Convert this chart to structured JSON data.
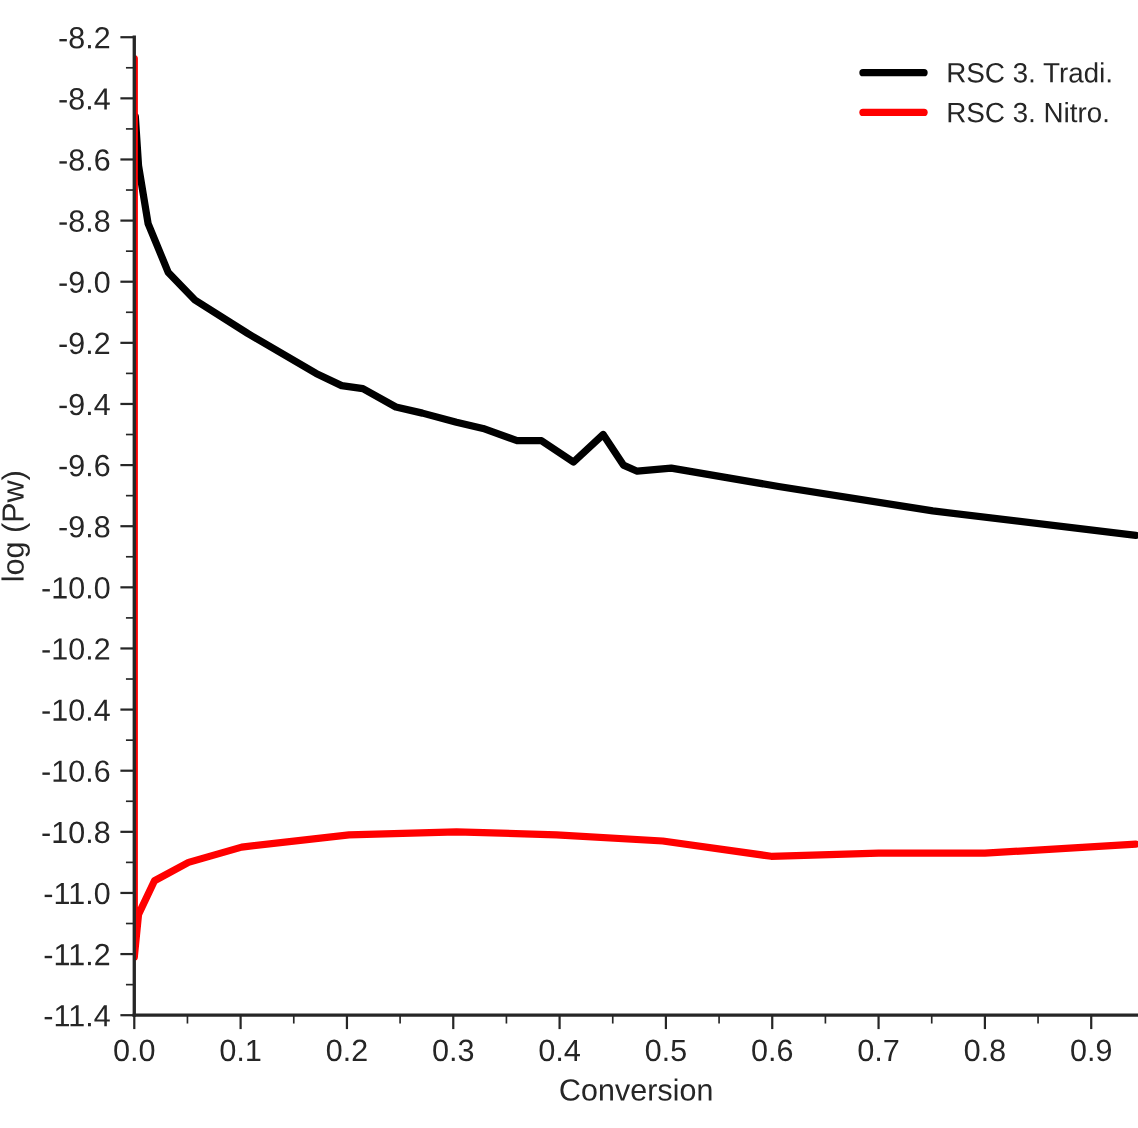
{
  "chart_data": {
    "type": "line",
    "xlabel": "Conversion",
    "ylabel": "log (Pw)",
    "xlim": [
      0,
      0.944
    ],
    "ylim": [
      -11.4,
      -8.2
    ],
    "xticks": [
      {
        "value": 0,
        "label": "0.0"
      },
      0.1,
      0.2,
      0.3,
      0.4,
      0.5,
      0.6,
      0.7,
      0.8,
      0.9
    ],
    "yticks": [
      {
        "value": -11.4,
        "label": "-11.4"
      },
      {
        "value": -11.2,
        "label": "-11.2"
      },
      {
        "value": -11.0,
        "label": "-11.0"
      },
      {
        "value": -10.8,
        "label": "-10.8"
      },
      {
        "value": -10.6,
        "label": "-10.6"
      },
      {
        "value": -10.4,
        "label": "-10.4"
      },
      {
        "value": -10.2,
        "label": "-10.2"
      },
      {
        "value": -10.0,
        "label": "-10.0"
      },
      {
        "value": -9.8,
        "label": "-9.8"
      },
      {
        "value": -9.6,
        "label": "-9.6"
      },
      {
        "value": -9.4,
        "label": "-9.4"
      },
      {
        "value": -9.2,
        "label": "-9.2"
      },
      {
        "value": -9.0,
        "label": "-9.0"
      },
      {
        "value": -8.8,
        "label": "-8.8"
      },
      {
        "value": -8.6,
        "label": "-8.6"
      },
      {
        "value": -8.4,
        "label": "-8.4"
      },
      {
        "value": -8.2,
        "label": "-8.2"
      }
    ],
    "grid": false,
    "legend": "top right",
    "marker": "none",
    "line_style": "solid",
    "series": [
      {
        "name": "RSC 3. Tradi.",
        "color": "#000000",
        "x": [
          0.001,
          0.004,
          0.013,
          0.032,
          0.057,
          0.107,
          0.171,
          0.195,
          0.215,
          0.246,
          0.271,
          0.303,
          0.328,
          0.36,
          0.383,
          0.413,
          0.441,
          0.46,
          0.473,
          0.505,
          0.606,
          0.751,
          0.942
        ],
        "values": [
          -8.46,
          -8.62,
          -8.81,
          -8.97,
          -9.06,
          -9.17,
          -9.3,
          -9.34,
          -9.35,
          -9.41,
          -9.43,
          -9.46,
          -9.48,
          -9.52,
          -9.52,
          -9.59,
          -9.5,
          -9.6,
          -9.62,
          -9.61,
          -9.67,
          -9.75,
          -9.83
        ]
      },
      {
        "name": "RSC 3. Nitro.",
        "color": "#ff0000",
        "x": [
          0,
          0,
          0.004,
          0.019,
          0.051,
          0.101,
          0.202,
          0.303,
          0.397,
          0.497,
          0.599,
          0.7,
          0.8,
          0.942
        ],
        "values": [
          -8.27,
          -11.21,
          -11.07,
          -10.96,
          -10.9,
          -10.85,
          -10.81,
          -10.8,
          -10.81,
          -10.83,
          -10.88,
          -10.87,
          -10.87,
          -10.84
        ]
      }
    ]
  }
}
